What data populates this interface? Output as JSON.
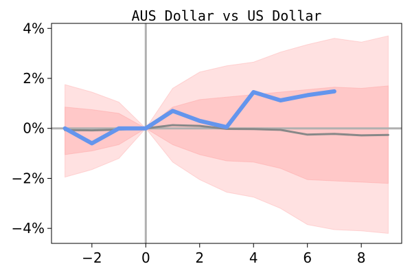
{
  "chart_data": {
    "type": "line",
    "title": "AUS Dollar vs US Dollar",
    "xlabel": "",
    "ylabel": "",
    "xlim": [
      -3.5,
      9.5
    ],
    "ylim": [
      -0.046,
      0.042
    ],
    "x_ticks": [
      -2,
      0,
      2,
      4,
      6,
      8
    ],
    "x_tick_labels": [
      "−2",
      "0",
      "2",
      "4",
      "6",
      "8"
    ],
    "y_ticks": [
      -0.04,
      -0.02,
      0,
      0.02,
      0.04
    ],
    "y_tick_labels": [
      "−4%",
      "−2%",
      "0%",
      "2%",
      "4%"
    ],
    "grid": false,
    "reference_lines": {
      "x": 0,
      "y": 0,
      "color": "#b0b0b0"
    },
    "outer_band": {
      "color": "#ffb3b3",
      "x": [
        -3,
        -2,
        -1,
        0,
        1,
        2,
        3,
        4,
        5,
        6,
        7,
        8,
        9
      ],
      "upper": [
        0.0175,
        0.0145,
        0.0105,
        0,
        0.016,
        0.0225,
        0.025,
        0.0265,
        0.0305,
        0.0335,
        0.036,
        0.0345,
        0.037
      ],
      "lower": [
        -0.0195,
        -0.0165,
        -0.012,
        0,
        -0.0135,
        -0.0205,
        -0.0255,
        -0.0275,
        -0.032,
        -0.0385,
        -0.0405,
        -0.041,
        -0.042
      ]
    },
    "inner_band": {
      "color": "#ff9a9a",
      "x": [
        -3,
        -2,
        -1,
        0,
        1,
        2,
        3,
        4,
        5,
        6,
        7,
        8,
        9
      ],
      "upper": [
        0.0085,
        0.0075,
        0.006,
        0,
        0.0085,
        0.0115,
        0.0125,
        0.0135,
        0.0145,
        0.0155,
        0.0165,
        0.016,
        0.017
      ],
      "lower": [
        -0.0105,
        -0.009,
        -0.0065,
        0,
        -0.0065,
        -0.0105,
        -0.013,
        -0.0135,
        -0.016,
        -0.0205,
        -0.021,
        -0.0215,
        -0.022
      ]
    },
    "series": [
      {
        "color": "#6495ed",
        "x": [
          -3,
          -2,
          -1,
          0,
          1,
          2,
          3,
          4,
          5,
          6,
          7
        ],
        "values": [
          0,
          -0.006,
          0,
          0,
          0.007,
          0.003,
          0.0005,
          0.0145,
          0.0112,
          0.0133,
          0.0148
        ]
      },
      {
        "color": "#888888",
        "x": [
          -3,
          -2,
          -1,
          0,
          1,
          2,
          3,
          4,
          5,
          6,
          7,
          8,
          9
        ],
        "values": [
          -0.0007,
          -0.0008,
          -0.0005,
          0,
          0.0013,
          0.001,
          -0.0002,
          -0.0003,
          -0.0006,
          -0.0025,
          -0.0022,
          -0.0028,
          -0.0026
        ]
      }
    ]
  }
}
